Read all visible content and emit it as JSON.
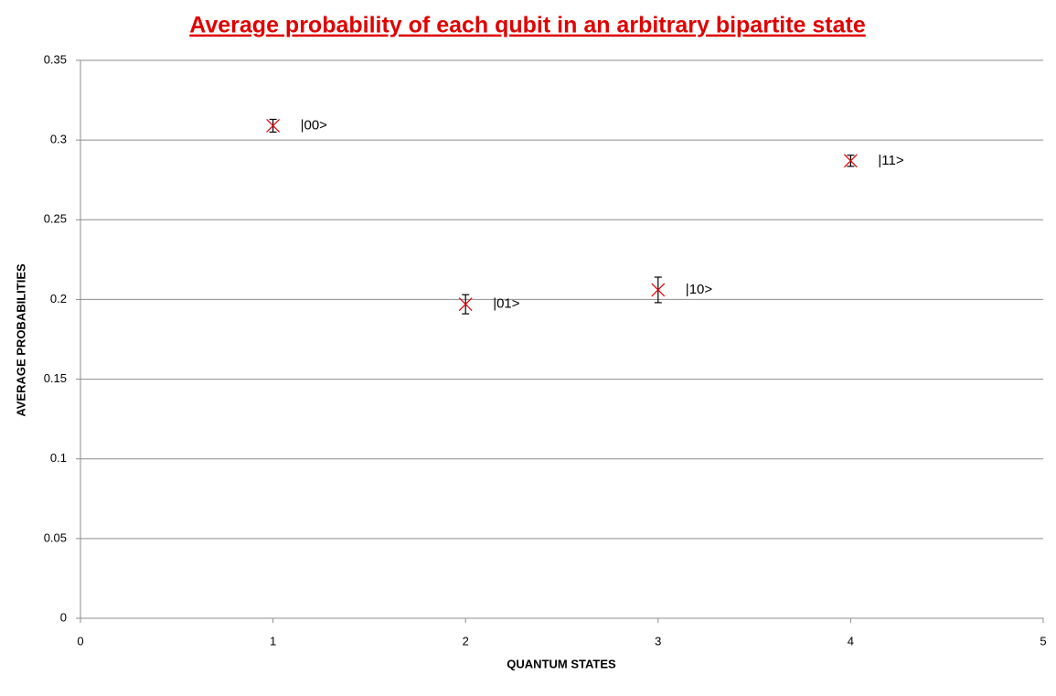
{
  "chart_data": {
    "type": "scatter",
    "title": "Average probability of each qubit in an arbitrary bipartite state",
    "x_label": "QUANTUM STATES",
    "y_label": "AVERAGE PROBABILITIES",
    "x": [
      1,
      2,
      3,
      4
    ],
    "values": [
      0.309,
      0.197,
      0.206,
      0.287
    ],
    "errors": [
      0.004,
      0.006,
      0.008,
      0.0035
    ],
    "labels": [
      "|00>",
      "|01>",
      "|10>",
      "|11>"
    ],
    "color": "#e00000",
    "error_color": "#000000",
    "xlim": [
      0,
      5
    ],
    "xticks": [
      0,
      1,
      2,
      3,
      4,
      5
    ],
    "ylim": [
      0,
      0.35
    ],
    "yticks": [
      0,
      0.05,
      0.1,
      0.15,
      0.2,
      0.25,
      0.3,
      0.35
    ],
    "grid": true
  }
}
